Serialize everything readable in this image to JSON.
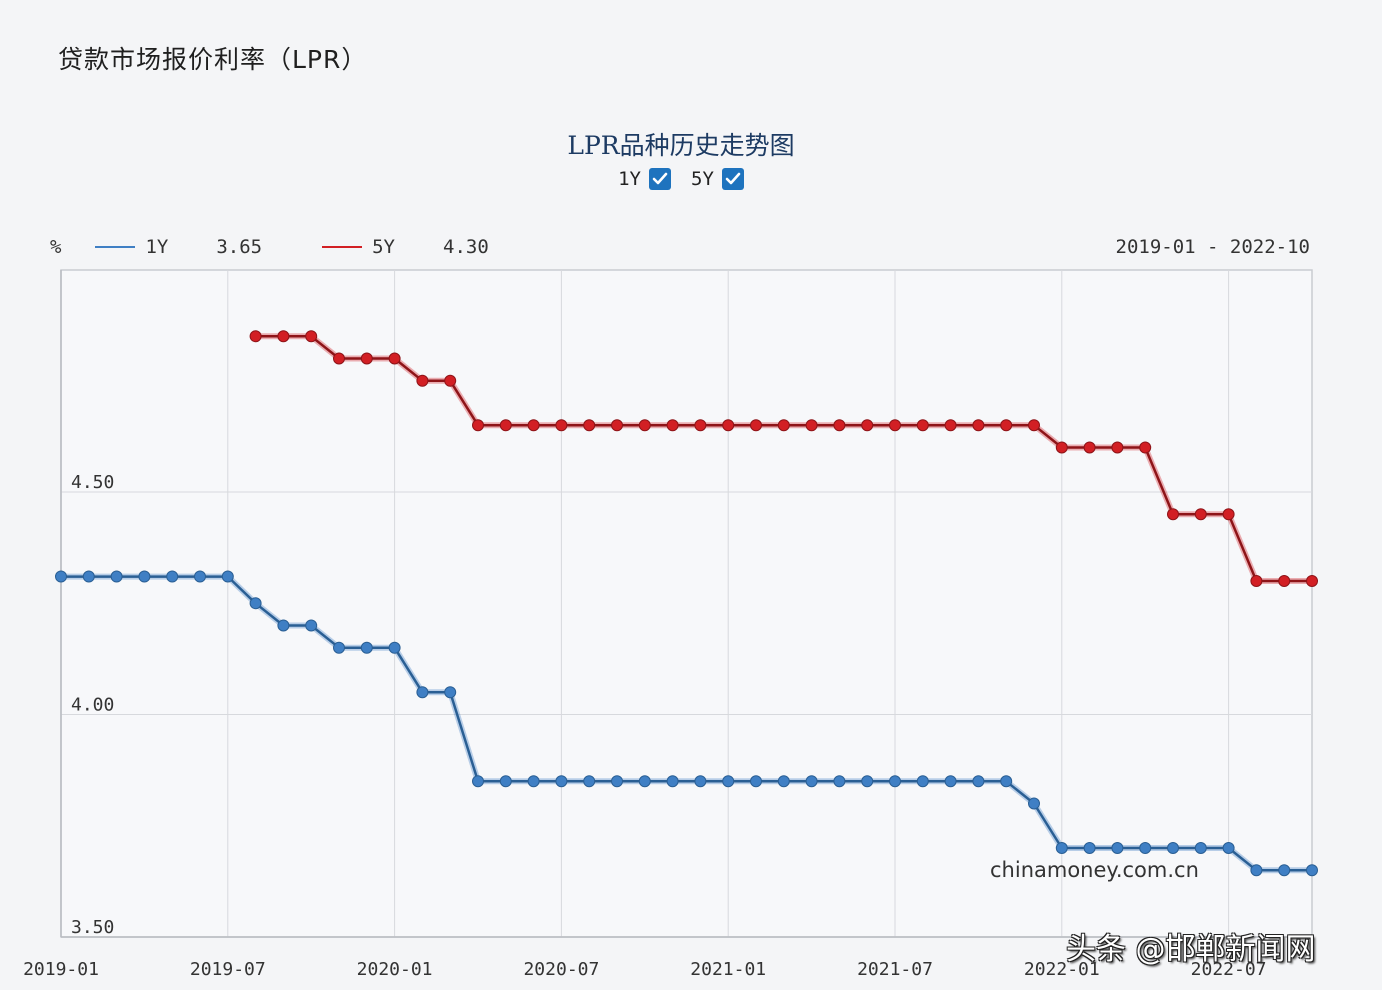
{
  "page": {
    "title": "贷款市场报价利率（LPR）"
  },
  "chart_header": {
    "title": "LPR品种历史走势图",
    "toggles": [
      {
        "label": "1Y",
        "checked": true
      },
      {
        "label": "5Y",
        "checked": true
      }
    ]
  },
  "legend": {
    "unit": "%",
    "items": [
      {
        "label": "1Y",
        "value": "3.65",
        "color": "#3f7fc4"
      },
      {
        "label": "5Y",
        "value": "4.30",
        "color": "#d21f24"
      }
    ],
    "range": "2019-01 - 2022-10"
  },
  "watermarks": {
    "source": "chinamoney.com.cn",
    "author": "头条 @邯郸新闻网"
  },
  "chart_data": {
    "type": "line",
    "title": "LPR品种历史走势图",
    "xlabel": "",
    "ylabel": "%",
    "ylim": [
      3.5,
      5.0
    ],
    "yticks": [
      "4.50",
      "4.00",
      "3.50"
    ],
    "xticks": [
      "2019-01",
      "2019-07",
      "2020-01",
      "2020-07",
      "2021-01",
      "2021-07",
      "2022-01",
      "2022-07"
    ],
    "grid": true,
    "legend_position": "top-left",
    "x": [
      "2019-01",
      "2019-02",
      "2019-03",
      "2019-04",
      "2019-05",
      "2019-06",
      "2019-07",
      "2019-08",
      "2019-09",
      "2019-10",
      "2019-11",
      "2019-12",
      "2020-01",
      "2020-02",
      "2020-03",
      "2020-04",
      "2020-05",
      "2020-06",
      "2020-07",
      "2020-08",
      "2020-09",
      "2020-10",
      "2020-11",
      "2020-12",
      "2021-01",
      "2021-02",
      "2021-03",
      "2021-04",
      "2021-05",
      "2021-06",
      "2021-07",
      "2021-08",
      "2021-09",
      "2021-10",
      "2021-11",
      "2021-12",
      "2022-01",
      "2022-02",
      "2022-03",
      "2022-04",
      "2022-05",
      "2022-06",
      "2022-07",
      "2022-08",
      "2022-09",
      "2022-10"
    ],
    "series": [
      {
        "name": "1Y",
        "color": "#3f7fc4",
        "values": [
          4.31,
          4.31,
          4.31,
          4.31,
          4.31,
          4.31,
          4.31,
          4.25,
          4.2,
          4.2,
          4.15,
          4.15,
          4.15,
          4.05,
          4.05,
          3.85,
          3.85,
          3.85,
          3.85,
          3.85,
          3.85,
          3.85,
          3.85,
          3.85,
          3.85,
          3.85,
          3.85,
          3.85,
          3.85,
          3.85,
          3.85,
          3.85,
          3.85,
          3.85,
          3.85,
          3.8,
          3.7,
          3.7,
          3.7,
          3.7,
          3.7,
          3.7,
          3.7,
          3.65,
          3.65,
          3.65
        ]
      },
      {
        "name": "5Y",
        "color": "#d21f24",
        "values": [
          null,
          null,
          null,
          null,
          null,
          null,
          null,
          4.85,
          4.85,
          4.85,
          4.8,
          4.8,
          4.8,
          4.75,
          4.75,
          4.65,
          4.65,
          4.65,
          4.65,
          4.65,
          4.65,
          4.65,
          4.65,
          4.65,
          4.65,
          4.65,
          4.65,
          4.65,
          4.65,
          4.65,
          4.65,
          4.65,
          4.65,
          4.65,
          4.65,
          4.65,
          4.6,
          4.6,
          4.6,
          4.6,
          4.45,
          4.45,
          4.45,
          4.3,
          4.3,
          4.3
        ]
      }
    ]
  }
}
